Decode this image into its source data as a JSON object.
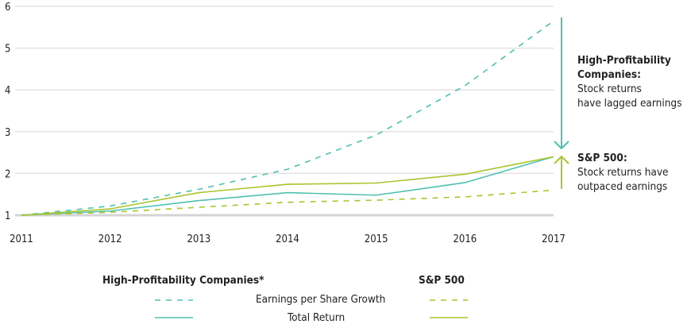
{
  "chart_data": {
    "type": "line",
    "x": [
      2011,
      2012,
      2013,
      2014,
      2015,
      2016,
      2017
    ],
    "ylim": [
      1,
      6
    ],
    "yticks": [
      1,
      2,
      3,
      4,
      5,
      6
    ],
    "grid": true,
    "legend_placement": "bottom",
    "colors": {
      "high_profitability": "#4fc0b0",
      "sp500": "#a9c52f"
    },
    "series": [
      {
        "group": "High-Profitability Companies*",
        "name": "Earnings per Share Growth",
        "style": "dashed",
        "color": "#4fc0b0",
        "values": [
          1,
          1.22,
          1.62,
          2.1,
          2.92,
          4.1,
          5.65
        ]
      },
      {
        "group": "High-Profitability Companies*",
        "name": "Total Return",
        "style": "solid",
        "color": "#4fc0b0",
        "values": [
          1,
          1.1,
          1.35,
          1.54,
          1.48,
          1.78,
          2.4
        ]
      },
      {
        "group": "S&P 500",
        "name": "Earnings per Share Growth",
        "style": "dashed",
        "color": "#a9c52f",
        "values": [
          1,
          1.07,
          1.19,
          1.31,
          1.36,
          1.44,
          1.6
        ]
      },
      {
        "group": "S&P 500",
        "name": "Total Return",
        "style": "solid",
        "color": "#a9c52f",
        "values": [
          1,
          1.15,
          1.54,
          1.74,
          1.77,
          1.98,
          2.4
        ]
      }
    ],
    "annotations": [
      {
        "title": "High-Profitability Companies:",
        "lines": [
          "Stock returns",
          "have lagged earnings"
        ]
      },
      {
        "title": "S&P 500:",
        "lines": [
          "Stock returns have",
          "outpaced earnings"
        ]
      }
    ],
    "legend": {
      "group1": "High-Profitability Companies*",
      "group2": "S&P 500",
      "row1": "Earnings per Share Growth",
      "row2": "Total Return"
    }
  }
}
